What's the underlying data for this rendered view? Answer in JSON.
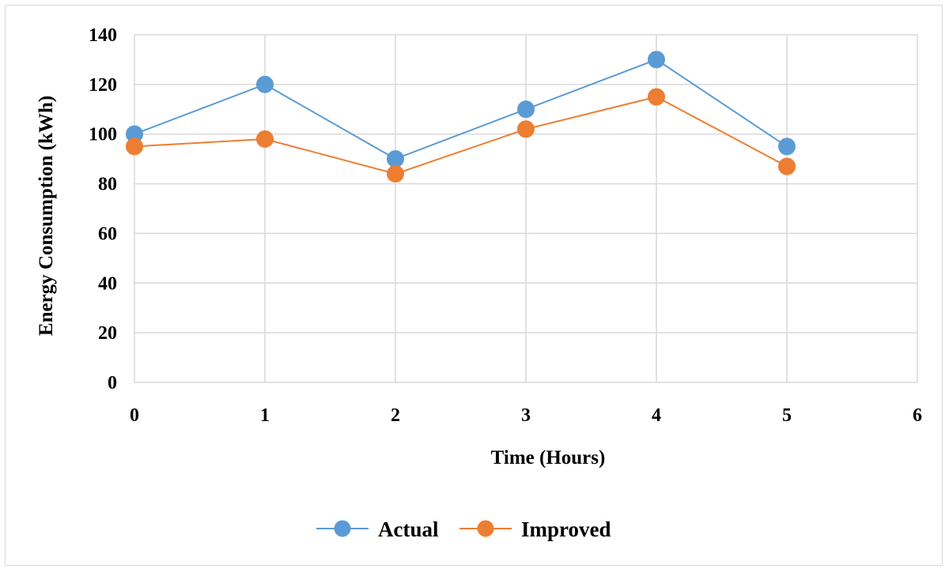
{
  "chart_data": {
    "type": "line",
    "xlabel": "Time (Hours)",
    "ylabel": "Energy Consumption (kWh)",
    "xlim": [
      0,
      6
    ],
    "ylim": [
      0,
      140
    ],
    "xticks": [
      0,
      1,
      2,
      3,
      4,
      5,
      6
    ],
    "yticks": [
      0,
      20,
      40,
      60,
      80,
      100,
      120,
      140
    ],
    "grid": true,
    "legend": "bottom",
    "series": [
      {
        "name": "Actual",
        "color": "#5b9bd5",
        "x": [
          0,
          1,
          2,
          3,
          4,
          5
        ],
        "y": [
          100,
          120,
          90,
          110,
          130,
          95
        ]
      },
      {
        "name": "Improved",
        "color": "#ed7d31",
        "x": [
          0,
          1,
          2,
          3,
          4,
          5
        ],
        "y": [
          95,
          98,
          84,
          102,
          115,
          87
        ]
      }
    ]
  }
}
